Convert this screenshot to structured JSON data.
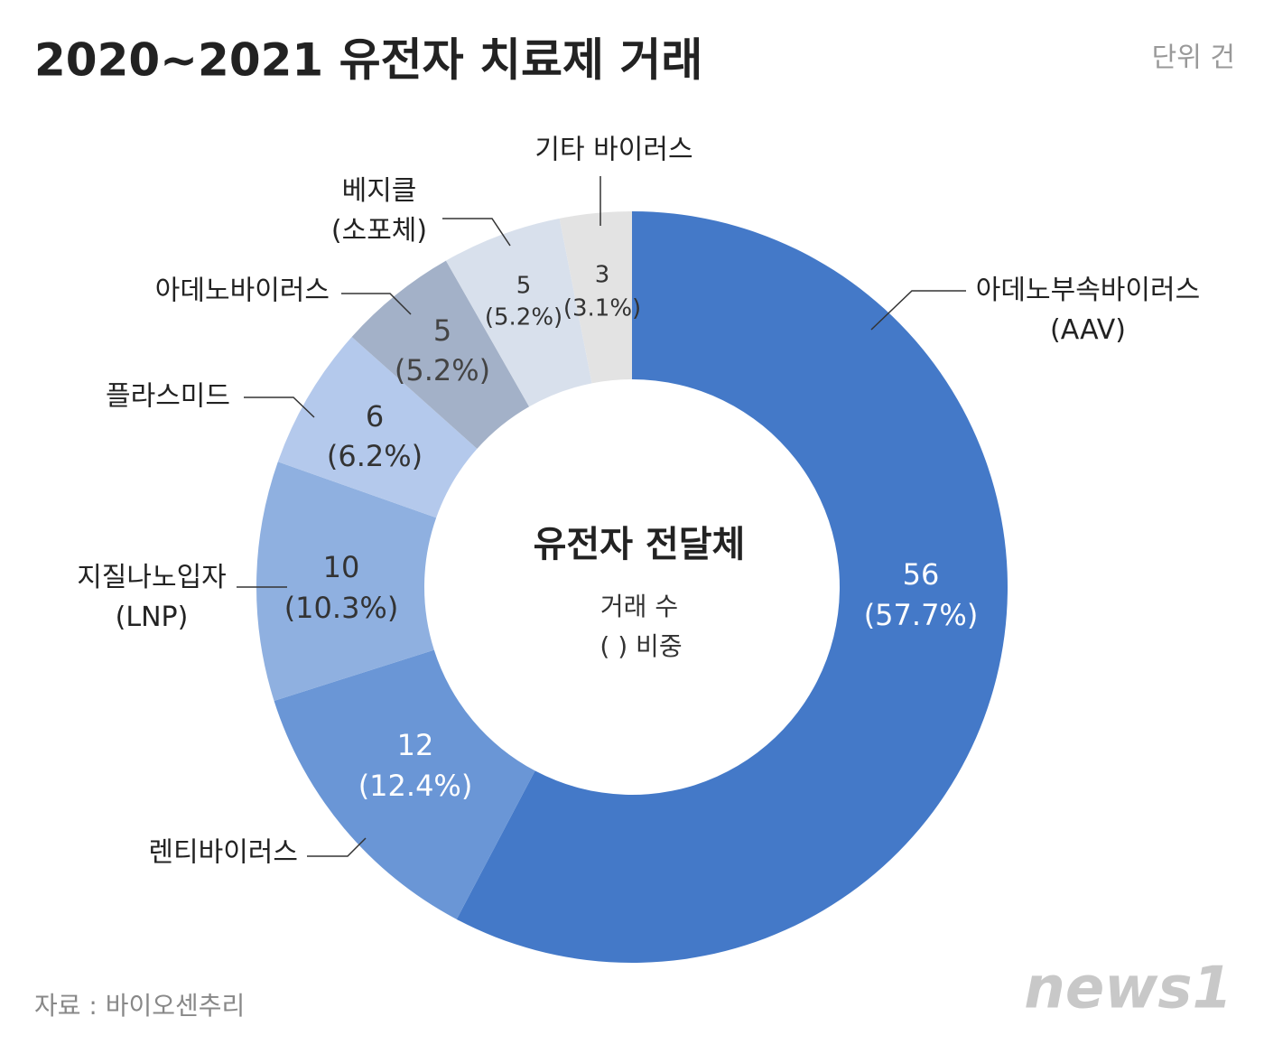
{
  "chart_data": {
    "type": "donut",
    "title": "2020~2021 유전자 치료제 거래",
    "unit": "단위 건",
    "center_title": "유전자 전달체",
    "center_legend": [
      "거래 수",
      "( ) 비중"
    ],
    "source": "자료 : 바이오센추리",
    "logo": "news1",
    "categories": [
      "아데노부속바이러스\n(AAV)",
      "렌티바이러스",
      "지질나노입자\n(LNP)",
      "플라스미드",
      "아데노바이러스",
      "베지클\n(소포체)",
      "기타 바이러스"
    ],
    "values": [
      56,
      12,
      10,
      6,
      5,
      5,
      3
    ],
    "value_labels": [
      "(57.7%)",
      "(12.4%)",
      "(10.3%)",
      "(6.2%)",
      "(5.2%)",
      "(5.2%)",
      "(3.1%)"
    ],
    "colors": [
      "#4479c8",
      "#6a96d6",
      "#8fb0e0",
      "#b4c9ec",
      "#a3b1c8",
      "#d8e0ec",
      "#e3e3e3"
    ]
  }
}
